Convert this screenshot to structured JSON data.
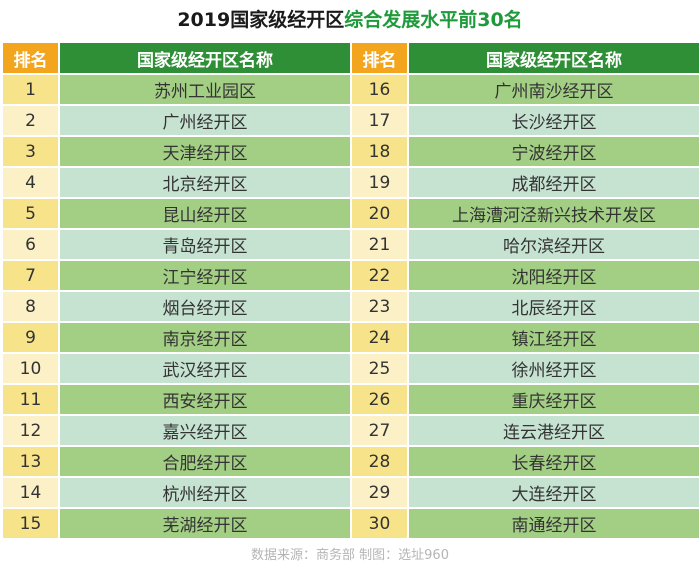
{
  "title": {
    "part1": "2019国家级经开区",
    "part2": "综合发展水平前30名"
  },
  "headers": {
    "rank": "排名",
    "name": "国家级经开区名称"
  },
  "left_rows": [
    {
      "rank": "1",
      "name": "苏州工业园区"
    },
    {
      "rank": "2",
      "name": "广州经开区"
    },
    {
      "rank": "3",
      "name": "天津经开区"
    },
    {
      "rank": "4",
      "name": "北京经开区"
    },
    {
      "rank": "5",
      "name": "昆山经开区"
    },
    {
      "rank": "6",
      "name": "青岛经开区"
    },
    {
      "rank": "7",
      "name": "江宁经开区"
    },
    {
      "rank": "8",
      "name": "烟台经开区"
    },
    {
      "rank": "9",
      "name": "南京经开区"
    },
    {
      "rank": "10",
      "name": "武汉经开区"
    },
    {
      "rank": "11",
      "name": "西安经开区"
    },
    {
      "rank": "12",
      "name": "嘉兴经开区"
    },
    {
      "rank": "13",
      "name": "合肥经开区"
    },
    {
      "rank": "14",
      "name": "杭州经开区"
    },
    {
      "rank": "15",
      "name": "芜湖经开区"
    }
  ],
  "right_rows": [
    {
      "rank": "16",
      "name": "广州南沙经开区"
    },
    {
      "rank": "17",
      "name": "长沙经开区"
    },
    {
      "rank": "18",
      "name": "宁波经开区"
    },
    {
      "rank": "19",
      "name": "成都经开区"
    },
    {
      "rank": "20",
      "name": "上海漕河泾新兴技术开发区"
    },
    {
      "rank": "21",
      "name": "哈尔滨经开区"
    },
    {
      "rank": "22",
      "name": "沈阳经开区"
    },
    {
      "rank": "23",
      "name": "北辰经开区"
    },
    {
      "rank": "24",
      "name": "镇江经开区"
    },
    {
      "rank": "25",
      "name": "徐州经开区"
    },
    {
      "rank": "26",
      "name": "重庆经开区"
    },
    {
      "rank": "27",
      "name": "连云港经开区"
    },
    {
      "rank": "28",
      "name": "长春经开区"
    },
    {
      "rank": "29",
      "name": "大连经开区"
    },
    {
      "rank": "30",
      "name": "南通经开区"
    }
  ],
  "footer": "数据来源：商务部  制图：选址960",
  "colors": {
    "rank_header": "#f2a51d",
    "name_header": "#2e8f36",
    "title_accent": "#1f9a3a",
    "rank_cell_odd": "#f7e389",
    "rank_cell_even": "#fbf0c6",
    "name_cell_odd": "#a3cf85",
    "name_cell_even": "#c6e3d2"
  }
}
